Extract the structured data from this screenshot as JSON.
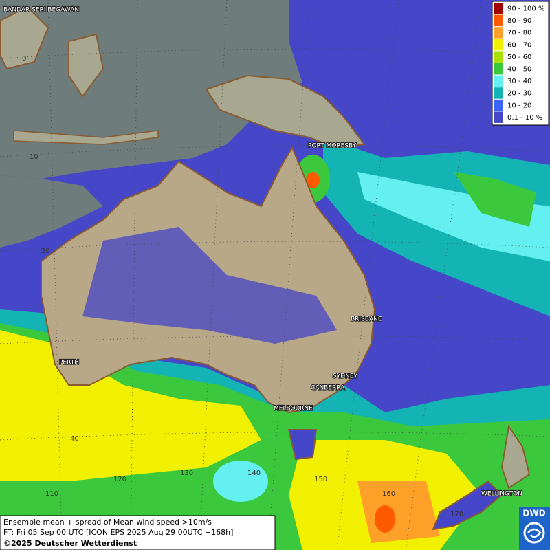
{
  "map": {
    "places": [
      "BANDAR SERI BEGAWAN",
      "PORT MORESBY",
      "BRISBANE",
      "PERTH",
      "SYDNEY",
      "CANBERRA",
      "MELBOURNE",
      "WELLINGTON"
    ],
    "lat_labels": [
      "0",
      "10",
      "20",
      "40"
    ],
    "lon_labels": [
      "110",
      "120",
      "130",
      "140",
      "150",
      "160",
      "170"
    ]
  },
  "legend": {
    "items": [
      {
        "label": "90 - 100 %",
        "color": "#a00000"
      },
      {
        "label": "80 - 90",
        "color": "#ff5a00"
      },
      {
        "label": "70 - 80",
        "color": "#ffa028"
      },
      {
        "label": "60 - 70",
        "color": "#f0f000"
      },
      {
        "label": "50 - 60",
        "color": "#a8e000"
      },
      {
        "label": "40 - 50",
        "color": "#3cc83c"
      },
      {
        "label": "30 - 40",
        "color": "#64f0f0"
      },
      {
        "label": "20 - 30",
        "color": "#14b4b4"
      },
      {
        "label": "10 - 20",
        "color": "#3c64ff"
      },
      {
        "label": "0.1 - 10 %",
        "color": "#4646c8"
      }
    ]
  },
  "footer": {
    "line1": "Ensemble mean + spread of Mean wind speed >10m/s",
    "line2": "FT: Fri 05 Sep 00 UTC [ICON EPS 2025 Aug 29 00UTC +168h]",
    "copyright": "©2025 Deutscher Wetterdienst"
  },
  "logo": "DWD"
}
